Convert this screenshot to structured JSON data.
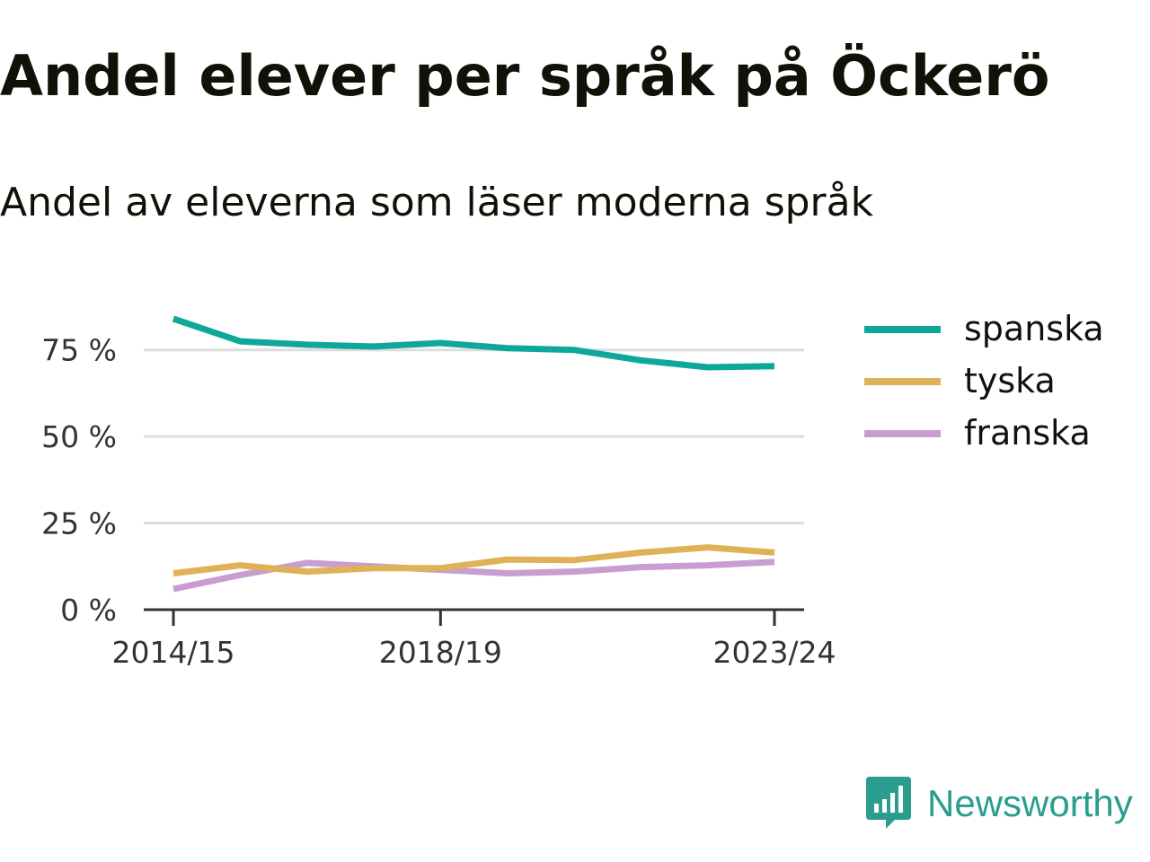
{
  "brand": {
    "name": "Newsworthy",
    "color": "#2a9d8f",
    "icon": "newsworthy-logo-icon"
  },
  "chart_data": {
    "type": "line",
    "title": "Andel elever per språk på Öckerö",
    "subtitle": "Andel av eleverna som läser moderna språk",
    "x": [
      "2014/15",
      "2015/16",
      "2016/17",
      "2017/18",
      "2018/19",
      "2019/20",
      "2020/21",
      "2021/22",
      "2022/23",
      "2023/24"
    ],
    "x_tick_labels": [
      "2014/15",
      "2018/19",
      "2023/24"
    ],
    "y_tick_labels": [
      "0 %",
      "25 %",
      "50 %",
      "75 %"
    ],
    "y_ticks": [
      0,
      25,
      50,
      75
    ],
    "ylim": [
      0,
      84
    ],
    "grid": true,
    "legend_position": "right",
    "series": [
      {
        "name": "spanska",
        "color": "#0da89a",
        "values": [
          84,
          77.5,
          76.5,
          76,
          77,
          75.5,
          75,
          72,
          70,
          70.3
        ]
      },
      {
        "name": "tyska",
        "color": "#e0b257",
        "values": [
          10.5,
          12.8,
          11,
          12,
          12,
          14.5,
          14.3,
          16.5,
          18,
          16.5
        ]
      },
      {
        "name": "franska",
        "color": "#c79ecf",
        "values": [
          6,
          10,
          13.5,
          12.5,
          11.5,
          10.5,
          11,
          12.3,
          12.8,
          13.8
        ]
      }
    ]
  }
}
